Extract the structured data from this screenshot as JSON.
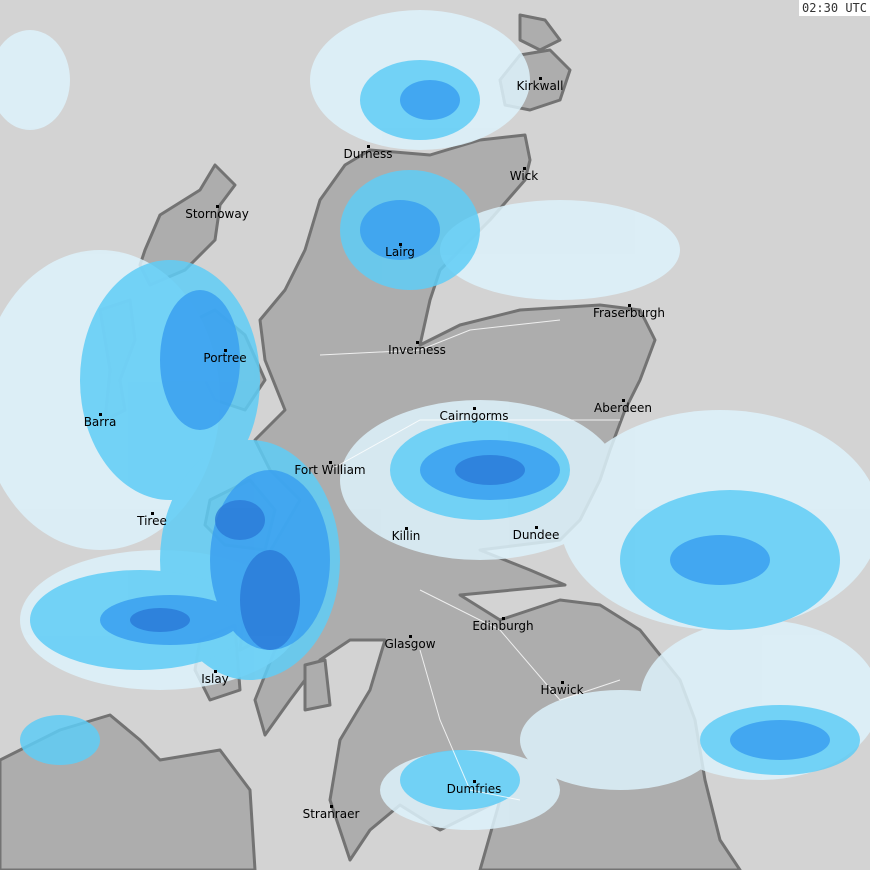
{
  "timestamp": "02:30 UTC",
  "colors": {
    "sea": "#d3d3d3",
    "land": "#adadad",
    "coast": "#737373",
    "rain_light": "#ddf2fb",
    "rain_moderate": "#5fcdf6",
    "rain_heavy": "#3aa0f0",
    "rain_very_heavy": "#2a7ad8"
  },
  "cities": [
    {
      "name": "Kirkwall"
    },
    {
      "name": "Durness"
    },
    {
      "name": "Wick"
    },
    {
      "name": "Stornoway"
    },
    {
      "name": "Lairg"
    },
    {
      "name": "Fraserburgh"
    },
    {
      "name": "Inverness"
    },
    {
      "name": "Portree"
    },
    {
      "name": "Aberdeen"
    },
    {
      "name": "Barra"
    },
    {
      "name": "Cairngorms"
    },
    {
      "name": "Fort William"
    },
    {
      "name": "Tiree"
    },
    {
      "name": "Killin"
    },
    {
      "name": "Dundee"
    },
    {
      "name": "Edinburgh"
    },
    {
      "name": "Glasgow"
    },
    {
      "name": "Islay"
    },
    {
      "name": "Hawick"
    },
    {
      "name": "Dumfries"
    },
    {
      "name": "Stranraer"
    }
  ]
}
